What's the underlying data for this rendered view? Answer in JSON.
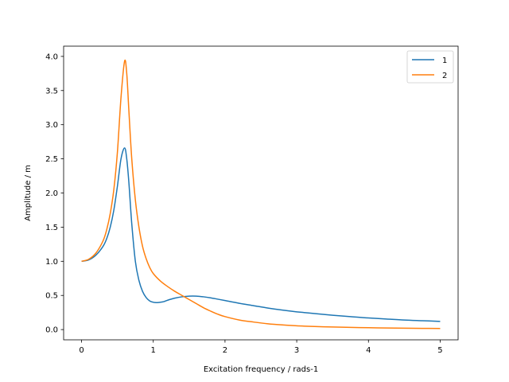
{
  "chart_data": {
    "type": "line",
    "title": "",
    "xlabel": "Excitation frequency / rads-1",
    "ylabel": "Amplitude / m",
    "xlim": [
      -0.25,
      5.25
    ],
    "ylim": [
      -0.15,
      4.15
    ],
    "xticks": [
      0,
      1,
      2,
      3,
      4,
      5
    ],
    "xtick_labels": [
      "0",
      "1",
      "2",
      "3",
      "4",
      "5"
    ],
    "yticks": [
      0.0,
      0.5,
      1.0,
      1.5,
      2.0,
      2.5,
      3.0,
      3.5,
      4.0
    ],
    "ytick_labels": [
      "0.0",
      "0.5",
      "1.0",
      "1.5",
      "2.0",
      "2.5",
      "3.0",
      "3.5",
      "4.0"
    ],
    "grid": false,
    "legend_position": "top-right",
    "series": [
      {
        "name": "1",
        "color": "#1f77b4",
        "x": [
          0,
          0.1,
          0.2,
          0.3,
          0.35,
          0.4,
          0.45,
          0.5,
          0.55,
          0.6,
          0.63,
          0.66,
          0.7,
          0.75,
          0.8,
          0.85,
          0.9,
          0.95,
          1.0,
          1.05,
          1.1,
          1.15,
          1.2,
          1.3,
          1.4,
          1.5,
          1.6,
          1.7,
          1.8,
          1.9,
          2.0,
          2.2,
          2.4,
          2.6,
          2.8,
          3.0,
          3.25,
          3.5,
          3.75,
          4.0,
          4.25,
          4.5,
          4.75,
          5.0
        ],
        "y": [
          1.0,
          1.02,
          1.09,
          1.22,
          1.33,
          1.5,
          1.75,
          2.1,
          2.5,
          2.66,
          2.5,
          2.15,
          1.55,
          1.0,
          0.72,
          0.56,
          0.47,
          0.42,
          0.4,
          0.395,
          0.4,
          0.41,
          0.43,
          0.46,
          0.48,
          0.49,
          0.49,
          0.48,
          0.465,
          0.445,
          0.425,
          0.385,
          0.35,
          0.315,
          0.285,
          0.26,
          0.235,
          0.21,
          0.19,
          0.17,
          0.155,
          0.14,
          0.13,
          0.12
        ]
      },
      {
        "name": "2",
        "color": "#ff7f0e",
        "x": [
          0,
          0.1,
          0.2,
          0.3,
          0.35,
          0.4,
          0.45,
          0.5,
          0.55,
          0.6,
          0.63,
          0.66,
          0.7,
          0.75,
          0.8,
          0.85,
          0.9,
          0.95,
          1.0,
          1.1,
          1.2,
          1.3,
          1.4,
          1.5,
          1.6,
          1.7,
          1.8,
          1.9,
          2.0,
          2.2,
          2.4,
          2.6,
          2.8,
          3.0,
          3.25,
          3.5,
          3.75,
          4.0,
          4.25,
          4.5,
          4.75,
          5.0
        ],
        "y": [
          1.0,
          1.03,
          1.12,
          1.3,
          1.46,
          1.7,
          2.05,
          2.6,
          3.4,
          3.93,
          3.75,
          3.2,
          2.5,
          1.9,
          1.5,
          1.22,
          1.04,
          0.91,
          0.82,
          0.71,
          0.63,
          0.56,
          0.5,
          0.44,
          0.38,
          0.32,
          0.27,
          0.225,
          0.19,
          0.14,
          0.11,
          0.085,
          0.068,
          0.055,
          0.045,
          0.038,
          0.032,
          0.027,
          0.023,
          0.02,
          0.018,
          0.016
        ]
      }
    ]
  }
}
